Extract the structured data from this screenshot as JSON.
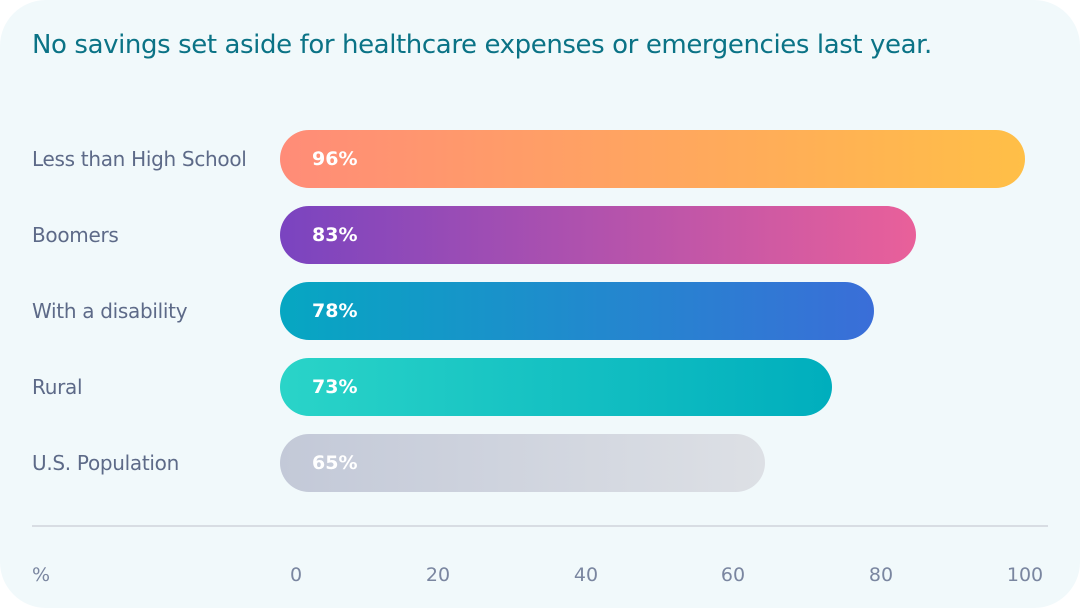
{
  "chart_data": {
    "type": "bar",
    "orientation": "horizontal",
    "title": "No savings set aside for healthcare expenses or emergencies last year.",
    "xlabel": "%",
    "categories": [
      "Less than High School",
      "Boomers",
      "With a disability",
      "Rural",
      "U.S. Population"
    ],
    "values": [
      96,
      83,
      78,
      73,
      65
    ],
    "value_labels": [
      "96%",
      "83%",
      "78%",
      "73%",
      "65%"
    ],
    "xlim": [
      0,
      100
    ],
    "xticks": [
      "0",
      "20",
      "40",
      "60",
      "80",
      "100"
    ],
    "grid": false,
    "colors": [
      [
        "#ff8c78",
        "#ffbf47"
      ],
      [
        "#7a44c0",
        "#e9609a"
      ],
      [
        "#06a7c2",
        "#3a6ed8"
      ],
      [
        "#2ad4c8",
        "#00aebd"
      ],
      [
        "#c3c9d8",
        "#dde0e5"
      ]
    ],
    "title_color": "#0b7386"
  }
}
